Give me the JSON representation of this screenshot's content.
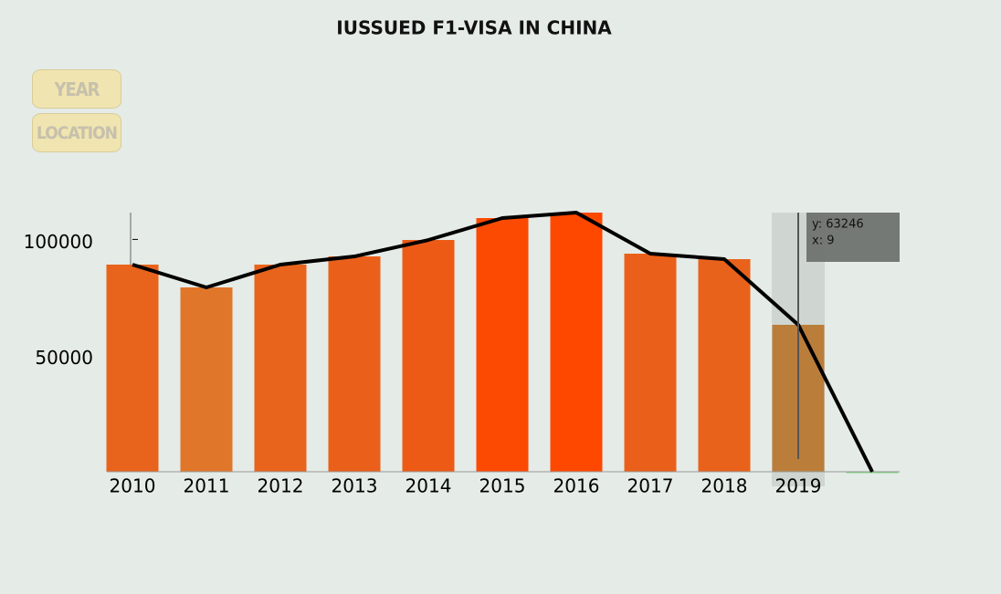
{
  "chart_data": {
    "type": "bar",
    "title": "IUSSUED F1-VISA IN  CHINA",
    "buttons": [
      "YEAR",
      "LOCATION"
    ],
    "categories": [
      "2010",
      "2011",
      "2012",
      "2013",
      "2014",
      "2015",
      "2016",
      "2017",
      "2018",
      "2019",
      null
    ],
    "values": [
      89160,
      79340,
      89160,
      92690,
      99760,
      109190,
      111550,
      93870,
      91520,
      63246,
      0
    ],
    "colors": [
      "#e8631c",
      "#e0762a",
      "#e8631c",
      "#ea601a",
      "#ec5a16",
      "#fc4a02",
      "#fe4800",
      "#ea601a",
      "#e9621b",
      "#bb7d3a",
      "#7cd67c"
    ],
    "line_color": "#000000",
    "ylim": [
      0,
      111550
    ],
    "yticks": [
      50000,
      100000
    ],
    "tooltip": {
      "y": "y: 63246",
      "x": "x: 9"
    }
  }
}
